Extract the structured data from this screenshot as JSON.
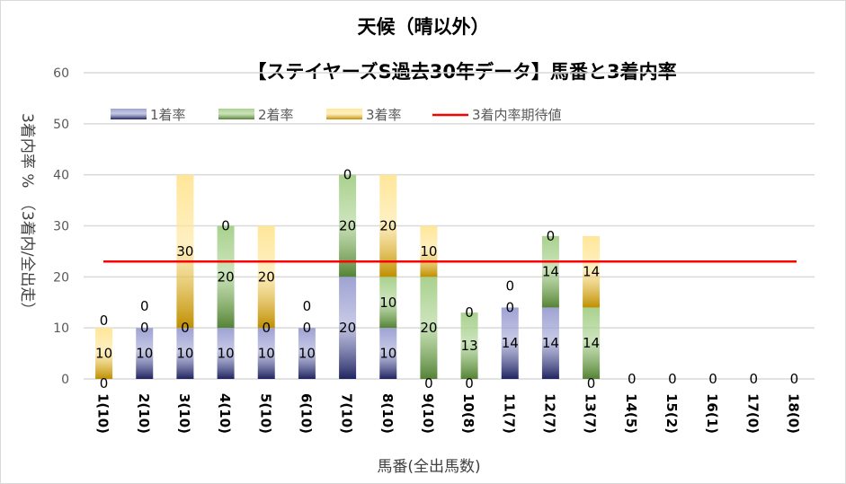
{
  "chart_data": {
    "type": "bar",
    "stacked": true,
    "title": "天候（晴以外）",
    "subtitle": "【ステイヤーズS過去30年データ】馬番と3着内率",
    "xlabel": "馬番(全出馬数)",
    "ylabel": "3着内率 %　（3着内/全出走）",
    "ylim": [
      0,
      60
    ],
    "yticks": [
      0,
      10,
      20,
      30,
      40,
      50,
      60
    ],
    "grid": true,
    "legend_position": "top",
    "categories": [
      "1(10)",
      "2(10)",
      "3(10)",
      "4(10)",
      "5(10)",
      "6(10)",
      "7(10)",
      "8(10)",
      "9(10)",
      "10(8)",
      "11(7)",
      "12(7)",
      "13(7)",
      "14(5)",
      "15(2)",
      "16(1)",
      "17(0)",
      "18(0)"
    ],
    "series": [
      {
        "name": "1着率",
        "color": "#9fa3d3",
        "dark": "#1f2460",
        "values": [
          0,
          10,
          10,
          10,
          10,
          10,
          20,
          10,
          0,
          0,
          14,
          14,
          0,
          0,
          0,
          0,
          0,
          0
        ]
      },
      {
        "name": "2着率",
        "color": "#a9d18e",
        "dark": "#548235",
        "values": [
          0,
          0,
          0,
          20,
          0,
          0,
          20,
          10,
          20,
          13,
          0,
          14,
          14,
          0,
          0,
          0,
          0,
          0
        ]
      },
      {
        "name": "3着率",
        "color": "#ffe699",
        "dark": "#bf8f00",
        "values": [
          10,
          0,
          30,
          0,
          20,
          0,
          0,
          20,
          10,
          0,
          0,
          0,
          14,
          0,
          0,
          0,
          0,
          0
        ]
      }
    ],
    "reference_line": {
      "name": "3着内率期待値",
      "value": 23,
      "color": "#ff0000"
    }
  }
}
